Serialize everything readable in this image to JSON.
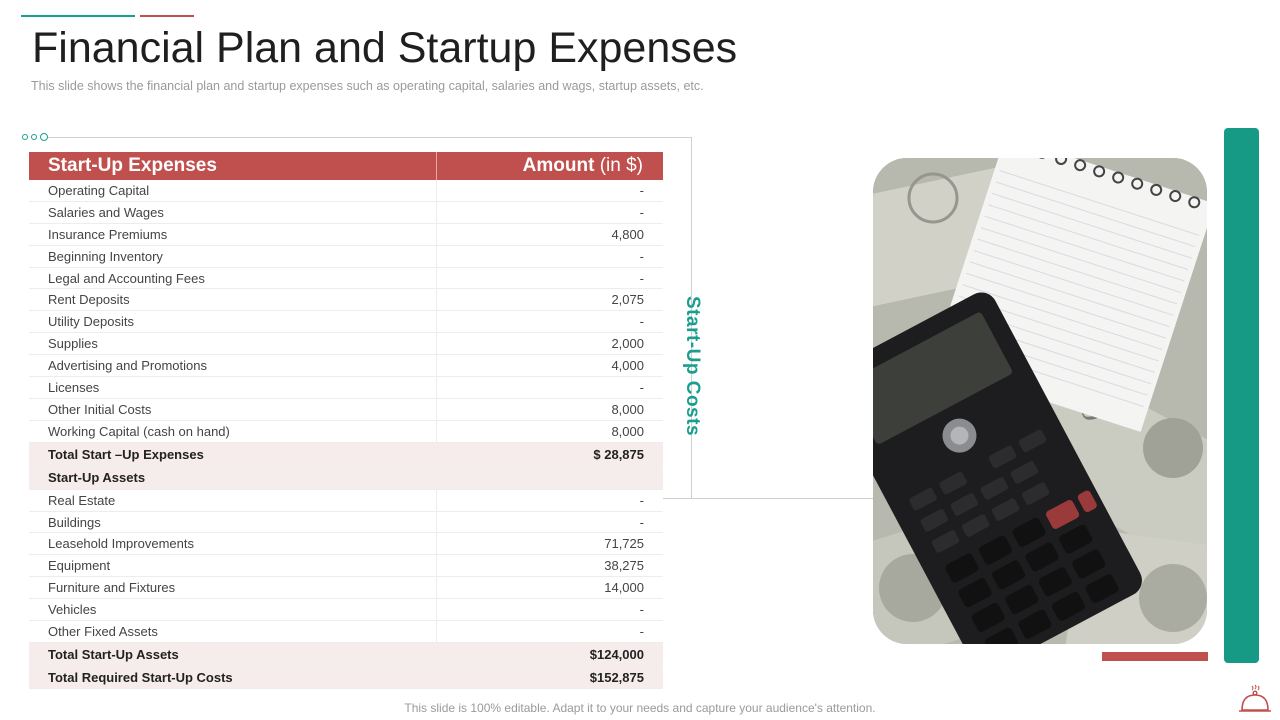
{
  "slide": {
    "title": "Financial Plan and Startup Expenses",
    "subtitle": "This slide shows the financial plan and startup expenses such as operating capital, salaries and wags, startup assets, etc.",
    "footer": "This slide is 100% editable. Adapt it to your needs and capture your audience's attention."
  },
  "table": {
    "header_left": "Start-Up Expenses",
    "header_right": "Amount",
    "header_right_unit": "(in $)",
    "rows": [
      {
        "label": "Operating Capital",
        "value": "-"
      },
      {
        "label": "Salaries and Wages",
        "value": "-"
      },
      {
        "label": "Insurance Premiums",
        "value": "4,800"
      },
      {
        "label": "Beginning Inventory",
        "value": "-"
      },
      {
        "label": "Legal and Accounting Fees",
        "value": "-"
      },
      {
        "label": "Rent Deposits",
        "value": "2,075"
      },
      {
        "label": "Utility Deposits",
        "value": "-"
      },
      {
        "label": "Supplies",
        "value": "2,000"
      },
      {
        "label": "Advertising and Promotions",
        "value": "4,000"
      },
      {
        "label": "Licenses",
        "value": "-"
      },
      {
        "label": "Other Initial Costs",
        "value": "8,000"
      },
      {
        "label": "Working Capital (cash on hand)",
        "value": "8,000"
      }
    ],
    "total_expenses": {
      "label": "Total Start –Up Expenses",
      "value": "$ 28,875"
    },
    "assets_section": "Start-Up Assets",
    "asset_rows": [
      {
        "label": "Real Estate",
        "value": "-"
      },
      {
        "label": "Buildings",
        "value": "-"
      },
      {
        "label": "Leasehold Improvements",
        "value": "71,725"
      },
      {
        "label": "Equipment",
        "value": "38,275"
      },
      {
        "label": "Furniture and Fixtures",
        "value": "14,000"
      },
      {
        "label": "Vehicles",
        "value": "-"
      },
      {
        "label": "Other Fixed Assets",
        "value": "-"
      }
    ],
    "total_assets": {
      "label": "Total Start-Up Assets",
      "value": "$124,000"
    },
    "total_required": {
      "label": "Total Required Start-Up Costs",
      "value": "$152,875"
    }
  },
  "side_label": "Start-Up Costs",
  "colors": {
    "accent_red": "#c0504d",
    "accent_teal": "#1a9e8f"
  }
}
